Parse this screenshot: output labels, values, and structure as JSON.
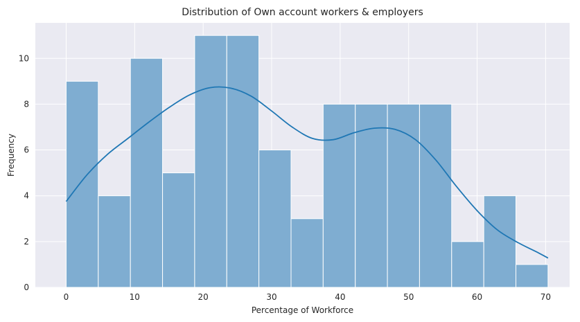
{
  "chart_data": {
    "type": "histogram",
    "title": "Distribution of Own account workers & employers",
    "xlabel": "Percentage of Workforce",
    "ylabel": "Frequency",
    "xlim": [
      -4.5,
      73.5
    ],
    "ylim": [
      0,
      11.55
    ],
    "xticks": [
      0,
      10,
      20,
      30,
      40,
      50,
      60,
      70
    ],
    "yticks": [
      0,
      2,
      4,
      6,
      8,
      10
    ],
    "bins": [
      {
        "x0": 0.0,
        "x1": 4.69,
        "count": 9
      },
      {
        "x0": 4.69,
        "x1": 9.38,
        "count": 4
      },
      {
        "x0": 9.38,
        "x1": 14.07,
        "count": 10
      },
      {
        "x0": 14.07,
        "x1": 18.76,
        "count": 5
      },
      {
        "x0": 18.76,
        "x1": 23.45,
        "count": 11
      },
      {
        "x0": 23.45,
        "x1": 28.14,
        "count": 11
      },
      {
        "x0": 28.14,
        "x1": 32.83,
        "count": 6
      },
      {
        "x0": 32.83,
        "x1": 37.52,
        "count": 3
      },
      {
        "x0": 37.52,
        "x1": 42.21,
        "count": 8
      },
      {
        "x0": 42.21,
        "x1": 46.9,
        "count": 8
      },
      {
        "x0": 46.9,
        "x1": 51.59,
        "count": 8
      },
      {
        "x0": 51.59,
        "x1": 56.28,
        "count": 8
      },
      {
        "x0": 56.28,
        "x1": 60.97,
        "count": 2
      },
      {
        "x0": 60.97,
        "x1": 65.66,
        "count": 4
      },
      {
        "x0": 65.66,
        "x1": 70.35,
        "count": 1
      }
    ],
    "kde": {
      "x": [
        0,
        3,
        6,
        9,
        12,
        15,
        18,
        21,
        24,
        27,
        30,
        33,
        36,
        39,
        42,
        45,
        48,
        51,
        54,
        57,
        60,
        63,
        66,
        69,
        70.35
      ],
      "y": [
        3.75,
        4.9,
        5.8,
        6.5,
        7.2,
        7.85,
        8.4,
        8.72,
        8.7,
        8.35,
        7.7,
        7.0,
        6.5,
        6.45,
        6.75,
        6.95,
        6.9,
        6.45,
        5.55,
        4.4,
        3.35,
        2.5,
        1.95,
        1.5,
        1.28
      ]
    },
    "colors": {
      "bar_fill": "#7fadd1",
      "bar_edge": "#ffffff",
      "kde_line": "#1f77b4",
      "plot_background": "#eaeaf2",
      "grid": "#ffffff"
    },
    "grid": true,
    "legend": "none"
  }
}
